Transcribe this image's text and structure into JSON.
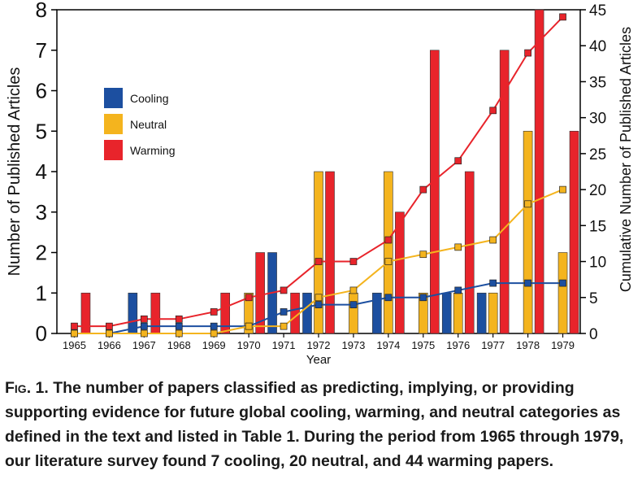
{
  "chart_data": {
    "type": "bar",
    "xlabel": "Year",
    "ylabel_left": "Number of Published Articles",
    "ylabel_right": "Cumulative Number of Published Articles",
    "ylim_left": [
      0,
      8
    ],
    "ylim_right": [
      0,
      45
    ],
    "yticks_left": [
      "0",
      "1",
      "2",
      "3",
      "4",
      "5",
      "6",
      "7",
      "8"
    ],
    "yticks_right": [
      "0",
      "5",
      "10",
      "15",
      "20",
      "25",
      "30",
      "35",
      "40",
      "45"
    ],
    "categories": [
      "1965",
      "1966",
      "1967",
      "1968",
      "1969",
      "1970",
      "1971",
      "1972",
      "1973",
      "1974",
      "1975",
      "1976",
      "1977",
      "1978",
      "1979"
    ],
    "legend_position": "top-left",
    "series": [
      {
        "name": "Cooling",
        "color": "#1c4fa0",
        "values": [
          0,
          0,
          1,
          0,
          0,
          0,
          2,
          1,
          0,
          1,
          0,
          1,
          1,
          0,
          0
        ]
      },
      {
        "name": "Neutral",
        "color": "#f4b41e",
        "values": [
          0,
          0,
          0,
          0,
          0,
          1,
          0,
          4,
          1,
          4,
          1,
          1,
          1,
          5,
          2
        ]
      },
      {
        "name": "Warming",
        "color": "#e8242b",
        "values": [
          1,
          0,
          1,
          0,
          1,
          2,
          1,
          4,
          0,
          3,
          7,
          4,
          7,
          8,
          5
        ]
      }
    ],
    "cumulative": [
      {
        "name": "Cooling",
        "color": "#1c4fa0",
        "values": [
          0,
          0,
          1,
          1,
          1,
          1,
          3,
          4,
          4,
          5,
          5,
          6,
          7,
          7,
          7
        ]
      },
      {
        "name": "Neutral",
        "color": "#f4b41e",
        "values": [
          0,
          0,
          0,
          0,
          0,
          1,
          1,
          5,
          6,
          10,
          11,
          12,
          13,
          18,
          20
        ]
      },
      {
        "name": "Warming",
        "color": "#e8242b",
        "values": [
          1,
          1,
          2,
          2,
          3,
          5,
          6,
          10,
          10,
          13,
          20,
          24,
          31,
          39,
          44
        ]
      }
    ]
  },
  "caption": {
    "lead": "Fig. 1.",
    "text": " The number of papers classified as predicting, implying, or providing supporting evidence for future global cooling, warming, and neutral categories as defined in the text and listed in Table 1. During the period from 1965 through 1979, our literature survey found 7 cooling, 20 neutral, and 44 warming papers."
  }
}
